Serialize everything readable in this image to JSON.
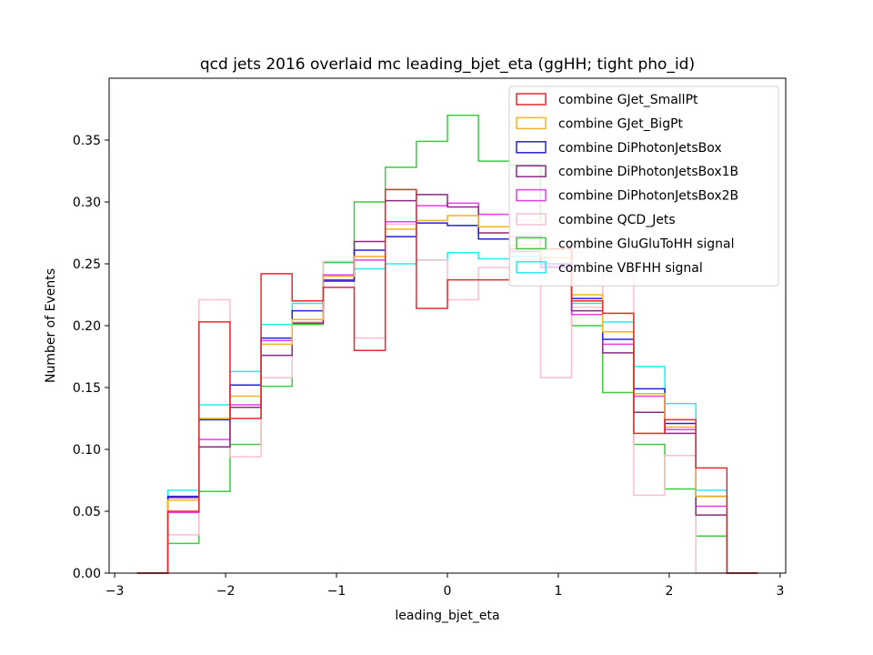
{
  "chart_data": {
    "type": "histogram",
    "title": "qcd jets 2016 overlaid mc leading_bjet_eta (ggHH; tight pho_id)",
    "xlabel": "leading_bjet_eta",
    "ylabel": "Number of Events",
    "xlim": [
      -3.05,
      3.05
    ],
    "ylim": [
      0,
      0.4
    ],
    "xticks": [
      -3,
      -2,
      -1,
      0,
      1,
      2,
      3
    ],
    "xtick_labels": [
      "−3",
      "−2",
      "−1",
      "0",
      "1",
      "2",
      "3"
    ],
    "yticks": [
      0,
      0.05,
      0.1,
      0.15,
      0.2,
      0.25,
      0.3,
      0.35
    ],
    "ytick_labels": [
      "0.00",
      "0.05",
      "0.10",
      "0.15",
      "0.20",
      "0.25",
      "0.30",
      "0.35"
    ],
    "bin_edges": [
      -2.8,
      -2.52,
      -2.24,
      -1.96,
      -1.68,
      -1.4,
      -1.12,
      -0.84,
      -0.56,
      -0.28,
      0.0,
      0.28,
      0.56,
      0.84,
      1.12,
      1.4,
      1.68,
      1.96,
      2.24,
      2.52,
      2.8
    ],
    "legend_position": "upper right",
    "series": [
      {
        "name": "combine GJet_SmallPt",
        "color": "#e8282c",
        "values": [
          0,
          0.05,
          0.203,
          0.125,
          0.242,
          0.22,
          0.231,
          0.18,
          0.31,
          0.214,
          0.237,
          0.237,
          0.262,
          0.262,
          0.22,
          0.21,
          0.113,
          0.124,
          0.085,
          0
        ]
      },
      {
        "name": "combine GJet_BigPt",
        "color": "#f5b125",
        "values": [
          0,
          0.059,
          0.125,
          0.143,
          0.185,
          0.205,
          0.24,
          0.256,
          0.278,
          0.285,
          0.289,
          0.28,
          0.265,
          0.255,
          0.225,
          0.195,
          0.145,
          0.118,
          0.062,
          0
        ]
      },
      {
        "name": "combine DiPhotonJetsBox",
        "color": "#2222dd",
        "values": [
          0,
          0.062,
          0.124,
          0.152,
          0.19,
          0.212,
          0.236,
          0.261,
          0.272,
          0.283,
          0.281,
          0.27,
          0.262,
          0.25,
          0.222,
          0.189,
          0.149,
          0.121,
          0.062,
          0
        ]
      },
      {
        "name": "combine DiPhotonJetsBox1B",
        "color": "#8b2a80",
        "values": [
          0,
          0.061,
          0.102,
          0.134,
          0.176,
          0.202,
          0.237,
          0.268,
          0.301,
          0.306,
          0.296,
          0.275,
          0.26,
          0.247,
          0.212,
          0.178,
          0.13,
          0.113,
          0.047,
          0
        ]
      },
      {
        "name": "combine DiPhotonJetsBox2B",
        "color": "#e83ce8",
        "values": [
          0,
          0.049,
          0.108,
          0.136,
          0.188,
          0.202,
          0.241,
          0.253,
          0.284,
          0.297,
          0.299,
          0.29,
          0.272,
          0.248,
          0.209,
          0.185,
          0.143,
          0.116,
          0.054,
          0
        ]
      },
      {
        "name": "combine QCD_Jets",
        "color": "#f9c0cb",
        "values": [
          0,
          0.031,
          0.221,
          0.094,
          0.158,
          0.203,
          0.252,
          0.19,
          0.282,
          0.253,
          0.221,
          0.247,
          0.285,
          0.158,
          0.215,
          0.242,
          0.063,
          0.095,
          0.0,
          0
        ]
      },
      {
        "name": "combine GluGluToHH signal",
        "color": "#3fca3f",
        "values": [
          0,
          0.024,
          0.066,
          0.104,
          0.151,
          0.201,
          0.251,
          0.3,
          0.328,
          0.349,
          0.37,
          0.333,
          0.33,
          0.262,
          0.2,
          0.146,
          0.104,
          0.068,
          0.03,
          0
        ]
      },
      {
        "name": "combine VBFHH signal",
        "color": "#22eef0",
        "values": [
          0,
          0.067,
          0.136,
          0.163,
          0.201,
          0.218,
          0.241,
          0.246,
          0.25,
          0.253,
          0.259,
          0.254,
          0.256,
          0.248,
          0.218,
          0.203,
          0.167,
          0.137,
          0.067,
          0
        ]
      }
    ]
  }
}
